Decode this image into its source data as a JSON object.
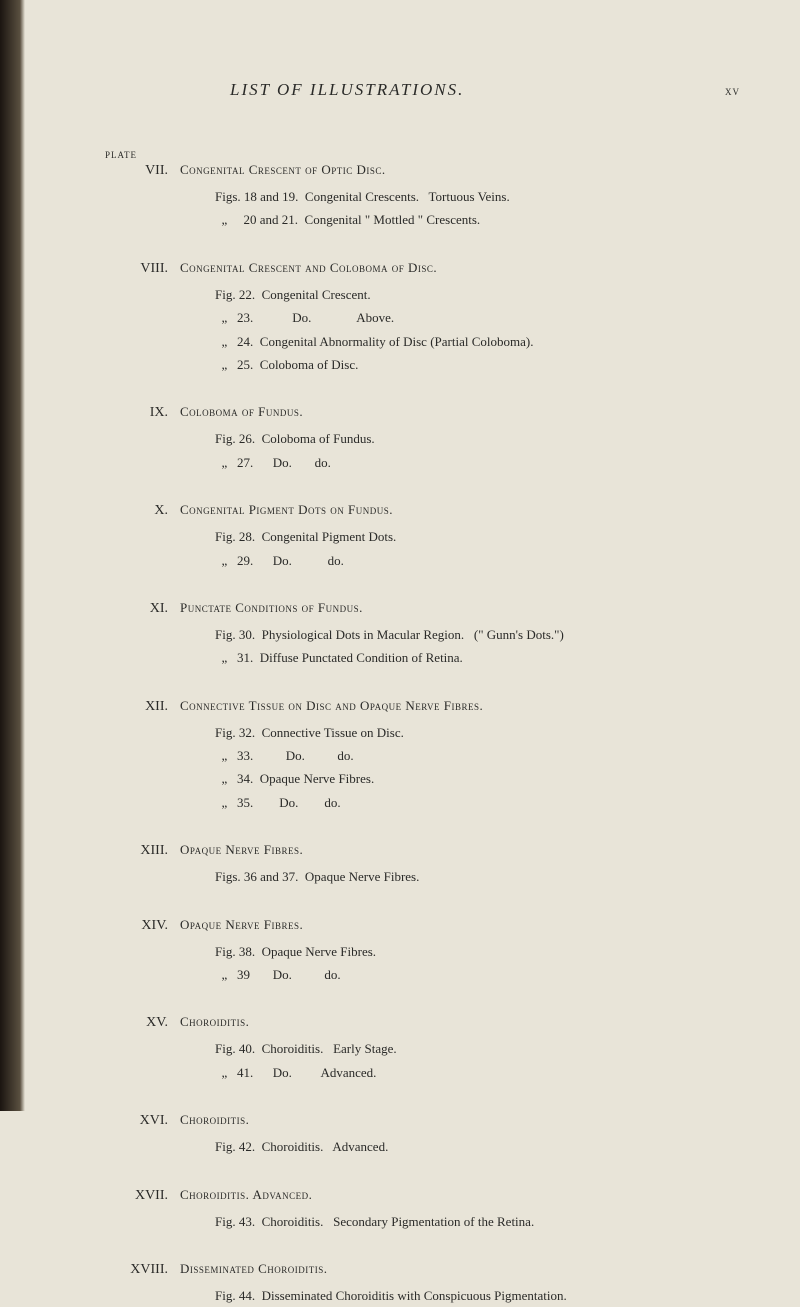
{
  "header": {
    "title": "LIST OF ILLUSTRATIONS.",
    "page_number": "xv"
  },
  "plate_label": "PLATE",
  "entries": [
    {
      "roman": "VII.",
      "title": "Congenital Crescent of Optic Disc.",
      "lines": [
        "Figs. 18 and 19.  Congenital Crescents.   Tortuous Veins.",
        "  „     20 and 21.  Congenital \" Mottled \" Crescents."
      ]
    },
    {
      "roman": "VIII.",
      "title": "Congenital Crescent and Coloboma of Disc.",
      "lines": [
        "Fig. 22.  Congenital Crescent.",
        "  „   23.            Do.              Above.",
        "  „   24.  Congenital Abnormality of Disc (Partial Coloboma).",
        "  „   25.  Coloboma of Disc."
      ]
    },
    {
      "roman": "IX.",
      "title": "Coloboma of Fundus.",
      "lines": [
        "Fig. 26.  Coloboma of Fundus.",
        "  „   27.      Do.       do."
      ]
    },
    {
      "roman": "X.",
      "title": "Congenital Pigment Dots on Fundus.",
      "lines": [
        "Fig. 28.  Congenital Pigment Dots.",
        "  „   29.      Do.           do."
      ]
    },
    {
      "roman": "XI.",
      "title": "Punctate Conditions of Fundus.",
      "lines": [
        "Fig. 30.  Physiological Dots in Macular Region.   (\" Gunn's Dots.\")",
        "  „   31.  Diffuse Punctated Condition of Retina."
      ]
    },
    {
      "roman": "XII.",
      "title": "Connective Tissue on Disc and Opaque Nerve Fibres.",
      "lines": [
        "Fig. 32.  Connective Tissue on Disc.",
        "  „   33.          Do.          do.",
        "  „   34.  Opaque Nerve Fibres.",
        "  „   35.        Do.        do."
      ]
    },
    {
      "roman": "XIII.",
      "title": "Opaque Nerve Fibres.",
      "lines": [
        "Figs. 36 and 37.  Opaque Nerve Fibres."
      ]
    },
    {
      "roman": "XIV.",
      "title": "Opaque Nerve Fibres.",
      "lines": [
        "Fig. 38.  Opaque Nerve Fibres.",
        "  „   39       Do.          do."
      ]
    },
    {
      "roman": "XV.",
      "title": "Choroiditis.",
      "lines": [
        "Fig. 40.  Choroiditis.   Early Stage.",
        "  „   41.      Do.         Advanced."
      ]
    },
    {
      "roman": "XVI.",
      "title": "Choroiditis.",
      "lines": [
        "Fig. 42.  Choroiditis.   Advanced."
      ]
    },
    {
      "roman": "XVII.",
      "title": "Choroiditis.   Advanced.",
      "lines": [
        "Fig. 43.  Choroiditis.   Secondary Pigmentation of the Retina."
      ]
    },
    {
      "roman": "XVIII.",
      "title": "Disseminated Choroiditis.",
      "lines": [
        "Fig. 44.  Disseminated Choroiditis with Conspicuous Pigmentation."
      ]
    }
  ]
}
